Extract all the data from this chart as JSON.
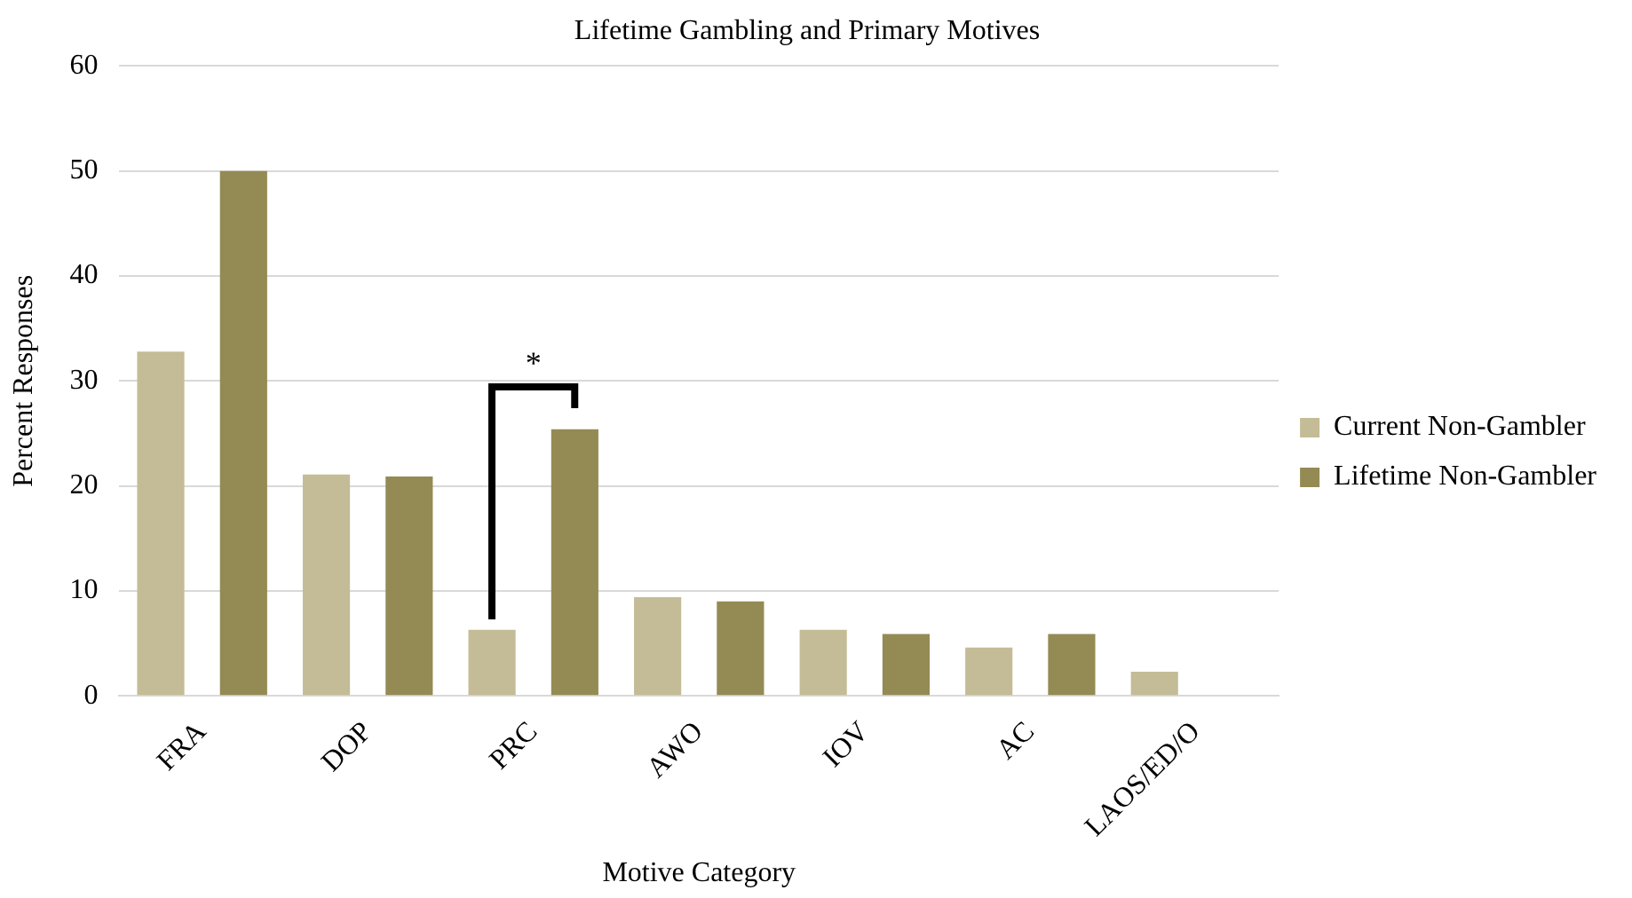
{
  "chart_data": {
    "type": "bar",
    "title": "Lifetime Gambling and Primary Motives",
    "xlabel": "Motive Category",
    "ylabel": "Percent Responses",
    "categories": [
      "FRA",
      "DOP",
      "PRC",
      "AWO",
      "IOV",
      "AC",
      "LAOS/ED/O"
    ],
    "series": [
      {
        "name": "Current Non-Gambler",
        "color": "#c4bc96",
        "values": [
          32.8,
          21.1,
          6.3,
          9.4,
          6.3,
          4.6,
          2.3
        ]
      },
      {
        "name": "Lifetime Non-Gambler",
        "color": "#948a54",
        "values": [
          50,
          20.9,
          25.4,
          9.0,
          5.9,
          5.9,
          null
        ]
      }
    ],
    "ylim": [
      0,
      60
    ],
    "yticks": [
      0,
      10,
      20,
      30,
      40,
      50,
      60
    ],
    "grid": "y",
    "legend": "right",
    "annotations": [
      "*"
    ]
  }
}
